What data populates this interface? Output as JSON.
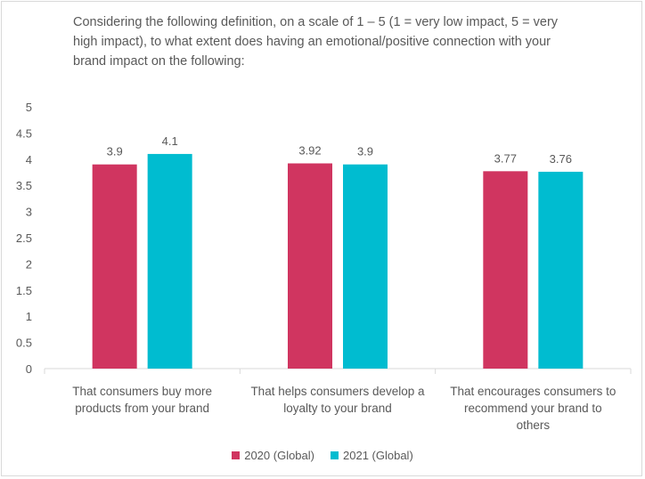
{
  "chart_data": {
    "type": "bar",
    "title": "Considering the following definition,  on a scale of 1 – 5 (1 = very low impact, 5 = very high impact), to what extent does having an emotional/positive connection with your brand impact on the following:",
    "categories": [
      [
        "That consumers buy more",
        "products from your brand"
      ],
      [
        "That helps consumers develop a",
        "loyalty to your brand"
      ],
      [
        "That encourages consumers to",
        "recommend your brand to",
        "others"
      ]
    ],
    "series": [
      {
        "name": "2020 (Global)",
        "color": "#d03560",
        "values": [
          3.9,
          3.92,
          3.77
        ],
        "labels": [
          "3.9",
          "3.92",
          "3.77"
        ]
      },
      {
        "name": "2021 (Global)",
        "color": "#00bcd0",
        "values": [
          4.1,
          3.9,
          3.76
        ],
        "labels": [
          "4.1",
          "3.9",
          "3.76"
        ]
      }
    ],
    "yticks": [
      "0",
      "0.5",
      "1",
      "1.5",
      "2",
      "2.5",
      "3",
      "3.5",
      "4",
      "4.5",
      "5"
    ],
    "ylim": [
      0,
      5
    ],
    "grid": false,
    "legend_position": "bottom"
  }
}
